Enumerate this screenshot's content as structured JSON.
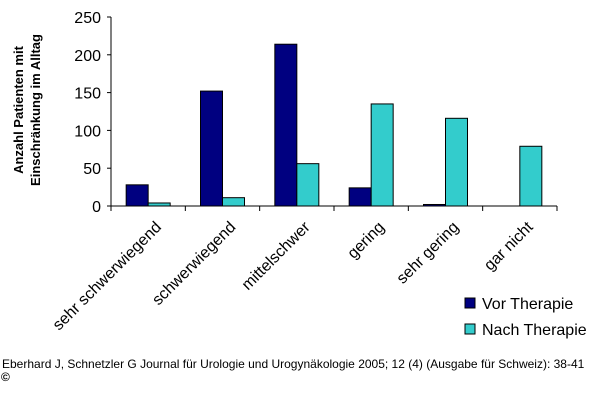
{
  "chart_data": {
    "type": "bar",
    "title": "",
    "ylabel_line1": "Anzahl Patienten mit",
    "ylabel_line2": "Einschränkung im Alltag",
    "xlabel": "",
    "categories": [
      "sehr schwerwiegend",
      "schwerwiegend",
      "mittelschwer",
      "gering",
      "sehr gering",
      "gar nicht"
    ],
    "series": [
      {
        "name": "Vor Therapie",
        "color": "#000080",
        "values": [
          28,
          152,
          214,
          24,
          2,
          0
        ]
      },
      {
        "name": "Nach Therapie",
        "color": "#33CCCC",
        "values": [
          4,
          11,
          56,
          135,
          116,
          79
        ]
      }
    ],
    "ylim": [
      0,
      250
    ],
    "yticks": [
      0,
      50,
      100,
      150,
      200,
      250
    ],
    "grid": false,
    "legend_position": "bottom-right"
  },
  "caption": "Eberhard J, Schnetzler G Journal für Urologie und Urogynäkologie 2005; 12 (4) (Ausgabe für Schweiz): 38-41",
  "copyright": "©"
}
